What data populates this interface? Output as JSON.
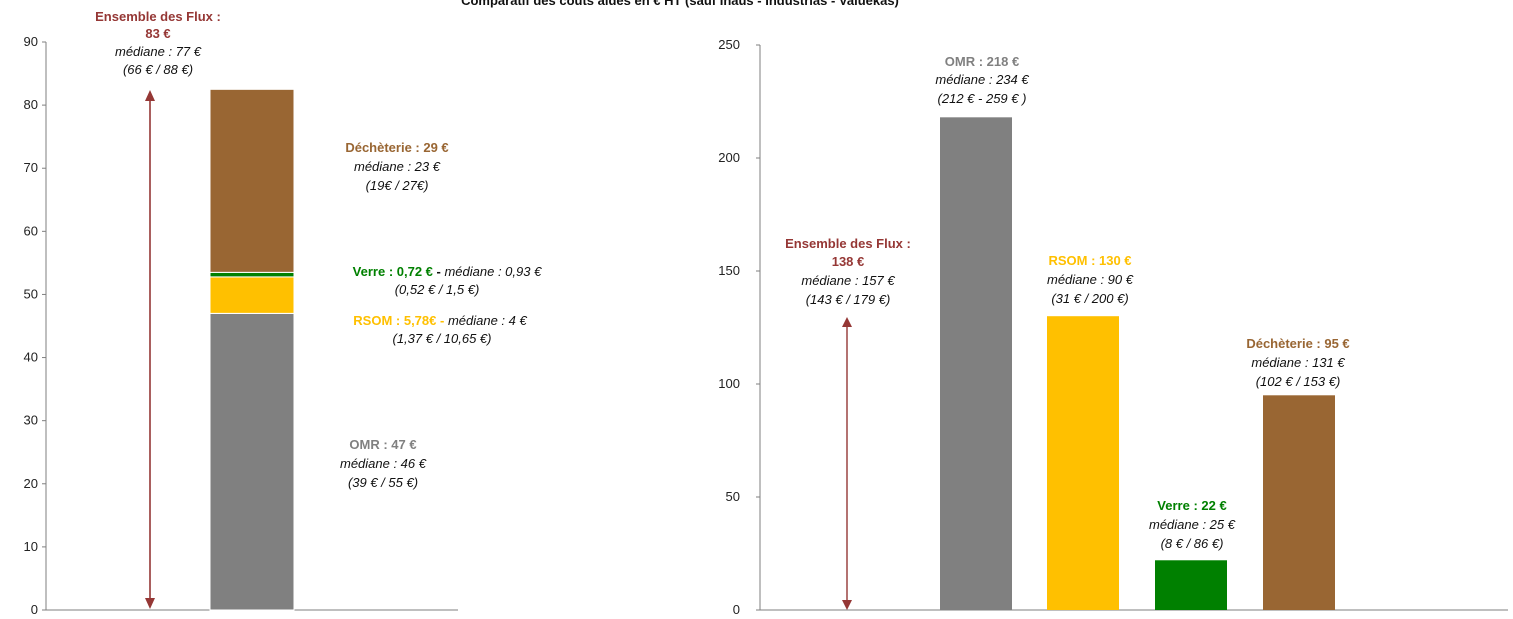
{
  "page_title": "Comparatif des coûts aidés en € HT (sauf Inaus - Industrias - Valuekas)",
  "colors": {
    "omr": "#808080",
    "rsom": "#FFC000",
    "verre": "#008000",
    "decheterie": "#996633",
    "total": "#953735",
    "arrow": "#953735"
  },
  "chart_data": [
    {
      "type": "bar",
      "stacked": true,
      "ylim": [
        0,
        90
      ],
      "yticks": [
        0,
        10,
        20,
        30,
        40,
        50,
        60,
        70,
        80,
        90
      ],
      "grid": false,
      "categories": [
        ""
      ],
      "series": [
        {
          "name": "OMR",
          "values": [
            47
          ],
          "color": "#808080"
        },
        {
          "name": "RSOM",
          "values": [
            5.78
          ],
          "color": "#FFC000"
        },
        {
          "name": "Verre",
          "values": [
            0.72
          ],
          "color": "#008000"
        },
        {
          "name": "Déchèterie",
          "values": [
            29
          ],
          "color": "#996633"
        }
      ],
      "annotations": {
        "total": {
          "title": "Ensemble des Flux :",
          "value": "83 €",
          "median": "médiane : 77 €",
          "range": "(66 € / 88 €)"
        },
        "decheterie": {
          "title": "Déchèterie : 29 €",
          "median": "médiane : 23 €",
          "range": "(19€ / 27€)"
        },
        "verre": {
          "title": "Verre : 0,72 €",
          "sep": " - ",
          "median": "médiane : 0,93 €",
          "range": "(0,52 € / 1,5 €)"
        },
        "rsom": {
          "title": "RSOM : 5,78€",
          "sep": " - ",
          "median": "médiane : 4 €",
          "range": "(1,37 € / 10,65 €)"
        },
        "omr": {
          "title": "OMR : 47 €",
          "median": "médiane : 46 €",
          "range": "(39 € / 55 €)"
        }
      }
    },
    {
      "type": "bar",
      "ylim": [
        0,
        250
      ],
      "yticks": [
        0,
        50,
        100,
        150,
        200,
        250
      ],
      "grid": false,
      "categories": [
        "OMR",
        "RSOM",
        "Verre",
        "Déchèterie"
      ],
      "values": [
        218,
        130,
        22,
        95
      ],
      "colors": [
        "#808080",
        "#FFC000",
        "#008000",
        "#996633"
      ],
      "annotations": {
        "total": {
          "title": "Ensemble des Flux :",
          "value": "138 €",
          "median": "médiane : 157 €",
          "range": "(143 € /  179 €)"
        },
        "omr": {
          "title": "OMR  : 218 €",
          "median": "médiane : 234 €",
          "range": "(212 € - 259 € )"
        },
        "rsom": {
          "title": "RSOM : 130 €",
          "median": "médiane : 90 €",
          "range": "(31 € / 200 €)"
        },
        "verre": {
          "title": "Verre : 22 €",
          "median": "médiane : 25 €",
          "range": "(8 € / 86 €)"
        },
        "decheterie": {
          "title": "Déchèterie : 95 €",
          "median": "médiane : 131  €",
          "range": "(102 € / 153 €)"
        }
      }
    }
  ]
}
